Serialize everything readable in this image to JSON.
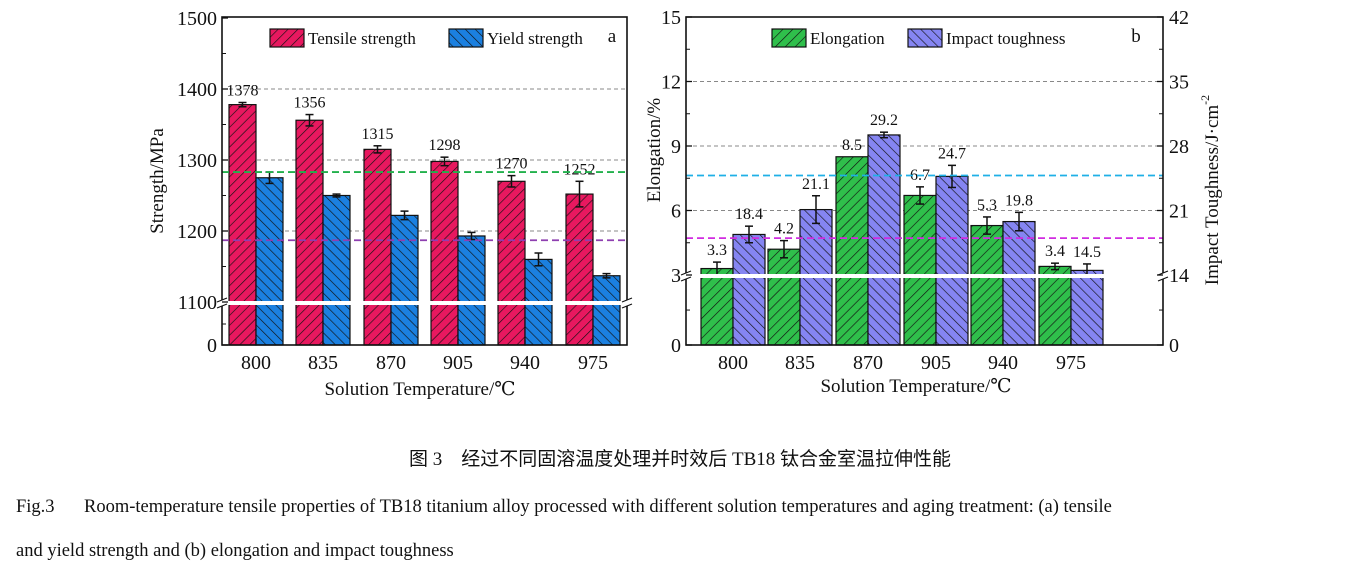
{
  "chart_data": [
    {
      "type": "bar",
      "panel_label": "a",
      "categories": [
        "800",
        "835",
        "870",
        "905",
        "940",
        "975"
      ],
      "xlabel": "Solution Temperature/℃",
      "ylabel": "Strength/MPa",
      "yticks": [
        0,
        1100,
        1200,
        1300,
        1400,
        1500
      ],
      "ylim": [
        0,
        1500
      ],
      "axis_break": [
        0,
        1100
      ],
      "grid": "dashed at 1100, 1200, 1300, 1400",
      "legend_placement": "top",
      "series": [
        {
          "name": "Tensile strength",
          "color": "#e8185f",
          "hatch": "forward",
          "values": [
            1378,
            1356,
            1315,
            1298,
            1270,
            1252
          ],
          "errors": [
            3,
            8,
            5,
            6,
            8,
            18
          ],
          "labels": [
            "1378",
            "1356",
            "1315",
            "1298",
            "1270",
            "1252"
          ]
        },
        {
          "name": "Yield strength",
          "color": "#1b80e0",
          "hatch": "backward",
          "values": [
            1275,
            1250,
            1222,
            1193,
            1160,
            1137
          ],
          "errors": [
            8,
            2,
            6,
            5,
            9,
            3
          ]
        }
      ],
      "reference_lines": [
        {
          "value": 1283,
          "color": "#22b14c"
        },
        {
          "value": 1187,
          "color": "#8e3fb0"
        }
      ]
    },
    {
      "type": "bar",
      "panel_label": "b",
      "categories": [
        "800",
        "835",
        "870",
        "905",
        "940",
        "975"
      ],
      "xlabel": "Solution Temperature/℃",
      "ylabel": "Elongation/%",
      "y2label": "Impact Toughness/J·cm",
      "y2label_sup": "-2",
      "yticks": [
        0,
        3,
        6,
        9,
        12,
        15
      ],
      "y2ticks": [
        0,
        14,
        21,
        28,
        35,
        42
      ],
      "ylim": [
        0,
        15
      ],
      "y2lim": [
        0,
        42
      ],
      "axis_break": [
        0,
        3
      ],
      "y2_axis_break": [
        0,
        14
      ],
      "grid": "dashed at 3, 6, 9, 12",
      "legend_placement": "top",
      "series": [
        {
          "name": "Elongation",
          "axis": "left",
          "color": "#2fbf4b",
          "hatch": "forward",
          "values": [
            3.3,
            4.2,
            8.5,
            6.7,
            5.3,
            3.4
          ],
          "errors": [
            0.3,
            0.4,
            0,
            0.4,
            0.4,
            0.15
          ],
          "labels": [
            "3.3",
            "4.2",
            "8.5",
            "6.7",
            "5.3",
            "3.4"
          ]
        },
        {
          "name": "Impact toughness",
          "axis": "right",
          "color": "#8585f2",
          "hatch": "backward",
          "values": [
            18.4,
            21.1,
            29.2,
            24.7,
            19.8,
            14.5
          ],
          "errors": [
            0.9,
            1.5,
            0.3,
            1.2,
            1.0,
            0.7
          ],
          "labels": [
            "18.4",
            "21.1",
            "29.2",
            "24.7",
            "19.8",
            "14.5"
          ]
        }
      ],
      "reference_lines": [
        {
          "value": 24.8,
          "axis": "right",
          "color": "#1fb0e6"
        },
        {
          "value": 18.0,
          "axis": "right",
          "color": "#d02ce0"
        }
      ]
    }
  ],
  "caption": {
    "cn": "图 3　经过不同固溶温度处理并时效后 TB18 钛合金室温拉伸性能",
    "en_label": "Fig.3",
    "en_line1": "Room-temperature tensile properties of TB18 titanium alloy processed with different solution temperatures and aging treatment: (a) tensile",
    "en_line2": "and yield strength and (b) elongation and impact toughness"
  }
}
